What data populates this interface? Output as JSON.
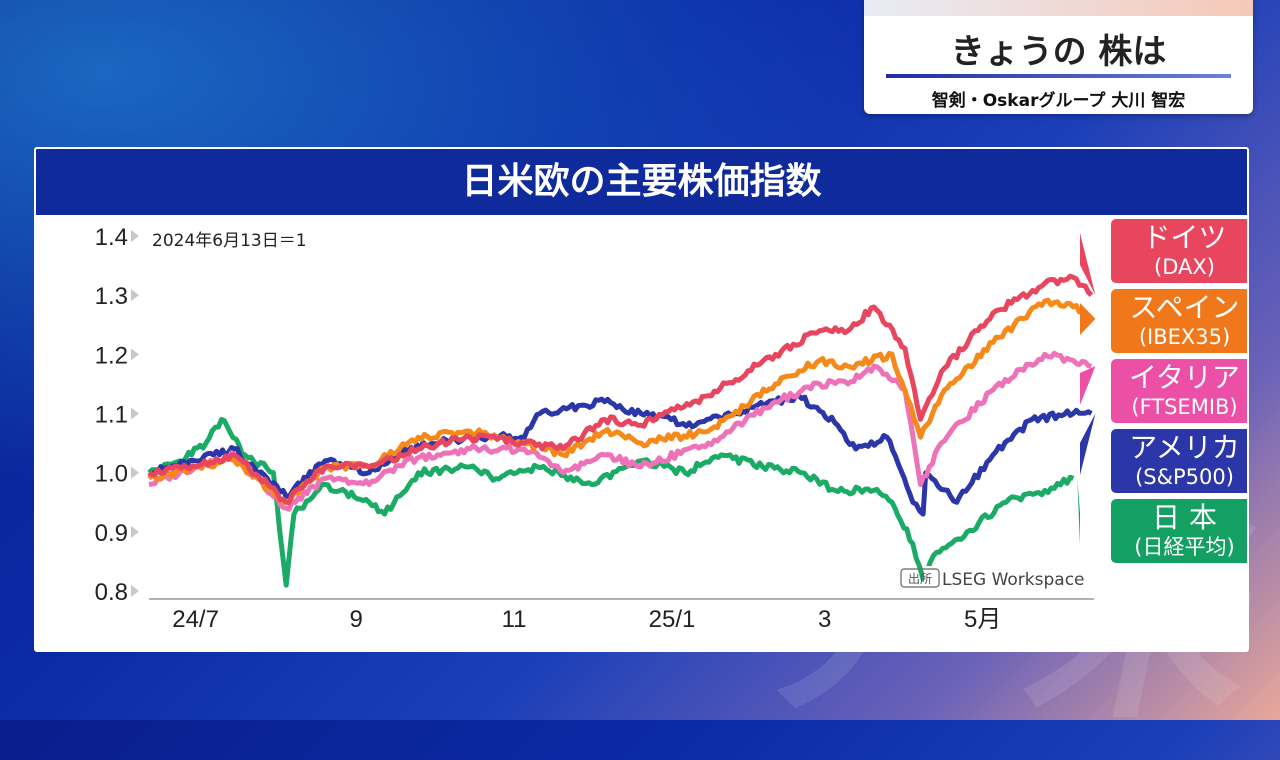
{
  "program_title": "きょうの 株は",
  "presenter": "智剣・Oskarグループ 大川 智宏",
  "panel_title": "日米欧の主要株価指数",
  "source": {
    "tag": "出所",
    "name": "LSEG Workspace"
  },
  "colors": {
    "header_bg": "#0f2a9a",
    "dax": "#e8455f",
    "ibex": "#f5891a",
    "ftse": "#ee72b8",
    "sp": "#2b36a8",
    "nikkei": "#1cab66"
  },
  "series_labels": [
    {
      "title": "ドイツ",
      "index": "(DAX)",
      "color": "#e8455f"
    },
    {
      "title": "スペイン",
      "index": "(IBEX35)",
      "color": "#f0781a"
    },
    {
      "title": "イタリア",
      "index": "(FTSEMIB)",
      "color": "#ec4fa6"
    },
    {
      "title": "アメリカ",
      "index": "(S&P500)",
      "color": "#2b36a8"
    },
    {
      "title": "日 本",
      "index": "(日経平均)",
      "color": "#14a062"
    }
  ],
  "chart_data": {
    "type": "line",
    "base_note": "2024年6月13日＝1",
    "ylim": [
      0.8,
      1.4
    ],
    "y_ticks": [
      "1.4",
      "1.3",
      "1.2",
      "1.1",
      "1.0",
      "0.9",
      "0.8"
    ],
    "x_ticks": [
      {
        "label": "24/7",
        "date": "2024-07-01"
      },
      {
        "label": "9",
        "date": "2024-09-01"
      },
      {
        "label": "11",
        "date": "2024-11-01"
      },
      {
        "label": "25/1",
        "date": "2025-01-01"
      },
      {
        "label": "3",
        "date": "2025-03-01"
      },
      {
        "label": "5月",
        "date": "2025-05-01"
      }
    ],
    "xlim": [
      "2024-06-13",
      "2025-06-13"
    ],
    "series": [
      {
        "key": "nikkei",
        "points": [
          [
            "2024-06-13",
            1.0
          ],
          [
            "2024-06-25",
            1.02
          ],
          [
            "2024-07-05",
            1.05
          ],
          [
            "2024-07-11",
            1.09
          ],
          [
            "2024-07-20",
            1.03
          ],
          [
            "2024-07-31",
            1.0
          ],
          [
            "2024-08-05",
            0.81
          ],
          [
            "2024-08-08",
            0.93
          ],
          [
            "2024-08-20",
            0.98
          ],
          [
            "2024-09-06",
            0.95
          ],
          [
            "2024-09-12",
            0.93
          ],
          [
            "2024-09-25",
            1.0
          ],
          [
            "2024-10-15",
            1.01
          ],
          [
            "2024-10-25",
            0.99
          ],
          [
            "2024-11-10",
            1.01
          ],
          [
            "2024-12-01",
            0.98
          ],
          [
            "2024-12-20",
            1.02
          ],
          [
            "2025-01-06",
            1.0
          ],
          [
            "2025-01-20",
            1.03
          ],
          [
            "2025-02-05",
            1.01
          ],
          [
            "2025-02-20",
            1.0
          ],
          [
            "2025-03-05",
            0.97
          ],
          [
            "2025-03-20",
            0.97
          ],
          [
            "2025-03-27",
            0.95
          ],
          [
            "2025-04-04",
            0.88
          ],
          [
            "2025-04-08",
            0.82
          ],
          [
            "2025-04-12",
            0.86
          ],
          [
            "2025-04-25",
            0.9
          ],
          [
            "2025-05-10",
            0.95
          ],
          [
            "2025-05-25",
            0.97
          ],
          [
            "2025-06-05",
            0.99
          ]
        ]
      },
      {
        "key": "sp",
        "points": [
          [
            "2024-06-13",
            1.0
          ],
          [
            "2024-07-01",
            1.02
          ],
          [
            "2024-07-16",
            1.04
          ],
          [
            "2024-07-25",
            1.0
          ],
          [
            "2024-08-05",
            0.96
          ],
          [
            "2024-08-20",
            1.02
          ],
          [
            "2024-09-06",
            1.0
          ],
          [
            "2024-09-20",
            1.04
          ],
          [
            "2024-10-15",
            1.06
          ],
          [
            "2024-11-05",
            1.06
          ],
          [
            "2024-11-11",
            1.1
          ],
          [
            "2024-12-06",
            1.12
          ],
          [
            "2024-12-20",
            1.1
          ],
          [
            "2025-01-10",
            1.08
          ],
          [
            "2025-02-01",
            1.11
          ],
          [
            "2025-02-19",
            1.13
          ],
          [
            "2025-03-06",
            1.08
          ],
          [
            "2025-03-13",
            1.04
          ],
          [
            "2025-03-25",
            1.06
          ],
          [
            "2025-04-04",
            0.95
          ],
          [
            "2025-04-08",
            0.93
          ],
          [
            "2025-04-09",
            1.0
          ],
          [
            "2025-04-21",
            0.95
          ],
          [
            "2025-05-05",
            1.03
          ],
          [
            "2025-05-20",
            1.09
          ],
          [
            "2025-06-05",
            1.1
          ],
          [
            "2025-06-12",
            1.1
          ]
        ]
      },
      {
        "key": "ftse",
        "points": [
          [
            "2024-06-13",
            0.98
          ],
          [
            "2024-07-01",
            1.01
          ],
          [
            "2024-07-16",
            1.03
          ],
          [
            "2024-08-05",
            0.94
          ],
          [
            "2024-08-20",
            0.99
          ],
          [
            "2024-09-06",
            0.98
          ],
          [
            "2024-09-20",
            1.02
          ],
          [
            "2024-10-15",
            1.04
          ],
          [
            "2024-11-05",
            1.04
          ],
          [
            "2024-11-20",
            1.0
          ],
          [
            "2024-12-06",
            1.03
          ],
          [
            "2024-12-20",
            1.01
          ],
          [
            "2025-01-15",
            1.05
          ],
          [
            "2025-02-10",
            1.12
          ],
          [
            "2025-02-27",
            1.15
          ],
          [
            "2025-03-10",
            1.15
          ],
          [
            "2025-03-20",
            1.18
          ],
          [
            "2025-04-01",
            1.14
          ],
          [
            "2025-04-07",
            0.98
          ],
          [
            "2025-04-15",
            1.05
          ],
          [
            "2025-05-05",
            1.14
          ],
          [
            "2025-05-25",
            1.2
          ],
          [
            "2025-06-05",
            1.19
          ],
          [
            "2025-06-12",
            1.18
          ]
        ]
      },
      {
        "key": "ibex",
        "points": [
          [
            "2024-06-13",
            0.99
          ],
          [
            "2024-07-01",
            1.01
          ],
          [
            "2024-07-16",
            1.02
          ],
          [
            "2024-08-05",
            0.95
          ],
          [
            "2024-08-20",
            1.01
          ],
          [
            "2024-09-06",
            1.01
          ],
          [
            "2024-09-25",
            1.06
          ],
          [
            "2024-10-15",
            1.07
          ],
          [
            "2024-11-05",
            1.05
          ],
          [
            "2024-11-20",
            1.03
          ],
          [
            "2024-12-06",
            1.07
          ],
          [
            "2024-12-20",
            1.05
          ],
          [
            "2025-01-15",
            1.07
          ],
          [
            "2025-02-10",
            1.15
          ],
          [
            "2025-02-27",
            1.19
          ],
          [
            "2025-03-10",
            1.18
          ],
          [
            "2025-03-27",
            1.2
          ],
          [
            "2025-04-07",
            1.06
          ],
          [
            "2025-04-15",
            1.13
          ],
          [
            "2025-05-05",
            1.22
          ],
          [
            "2025-05-25",
            1.29
          ],
          [
            "2025-06-05",
            1.28
          ],
          [
            "2025-06-12",
            1.26
          ]
        ]
      },
      {
        "key": "dax",
        "points": [
          [
            "2024-06-13",
            1.0
          ],
          [
            "2024-07-01",
            1.01
          ],
          [
            "2024-07-16",
            1.03
          ],
          [
            "2024-08-05",
            0.95
          ],
          [
            "2024-08-20",
            1.01
          ],
          [
            "2024-09-06",
            1.01
          ],
          [
            "2024-09-25",
            1.04
          ],
          [
            "2024-10-15",
            1.06
          ],
          [
            "2024-11-05",
            1.05
          ],
          [
            "2024-11-20",
            1.04
          ],
          [
            "2024-12-06",
            1.09
          ],
          [
            "2024-12-20",
            1.08
          ],
          [
            "2025-01-15",
            1.13
          ],
          [
            "2025-02-10",
            1.2
          ],
          [
            "2025-02-27",
            1.24
          ],
          [
            "2025-03-10",
            1.24
          ],
          [
            "2025-03-20",
            1.28
          ],
          [
            "2025-04-01",
            1.21
          ],
          [
            "2025-04-07",
            1.09
          ],
          [
            "2025-04-15",
            1.17
          ],
          [
            "2025-05-05",
            1.27
          ],
          [
            "2025-05-25",
            1.32
          ],
          [
            "2025-06-05",
            1.33
          ],
          [
            "2025-06-12",
            1.3
          ]
        ]
      }
    ]
  }
}
